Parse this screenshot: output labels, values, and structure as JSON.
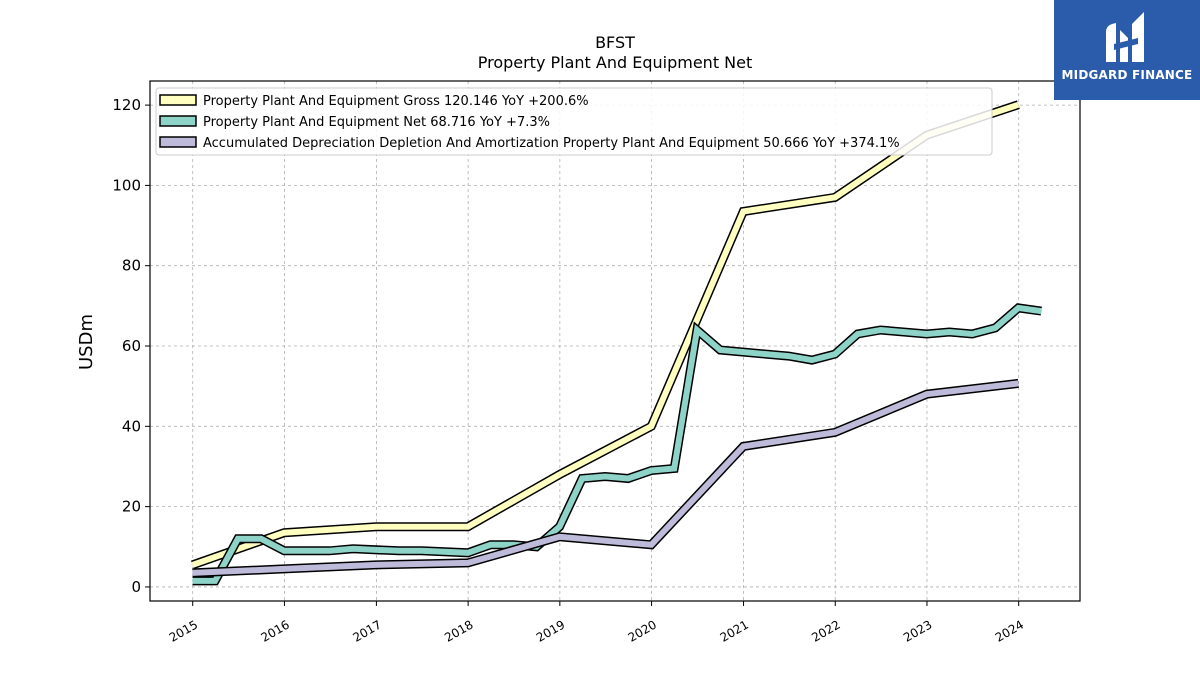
{
  "logo": {
    "text": "MIDGARD FINANCE",
    "bg_color": "#2b5cab"
  },
  "chart_data": {
    "type": "line",
    "title": "BFST",
    "subtitle": "Property Plant And Equipment Net",
    "ylabel": "USDm",
    "xlabel": "",
    "ylim": [
      -3.5,
      126
    ],
    "xlim": [
      "2014-07-15",
      "2024-09-01"
    ],
    "yticks": [
      0,
      20,
      40,
      60,
      80,
      100,
      120
    ],
    "xticks": [
      "2015",
      "2016",
      "2017",
      "2018",
      "2019",
      "2020",
      "2021",
      "2022",
      "2023",
      "2024"
    ],
    "grid": true,
    "legend_position": "top-left",
    "series": [
      {
        "name": "Property Plant And Equipment Gross  120.146 YoY +200.6%",
        "color": "#ffffbf",
        "points": [
          [
            "2014-12-31",
            5.5
          ],
          [
            "2015-12-31",
            13.5
          ],
          [
            "2016-12-31",
            15.0
          ],
          [
            "2017-12-31",
            15.0
          ],
          [
            "2018-12-31",
            28.0
          ],
          [
            "2019-12-31",
            40.0
          ],
          [
            "2020-12-31",
            93.5
          ],
          [
            "2021-12-31",
            97.0
          ],
          [
            "2022-12-31",
            112.5
          ],
          [
            "2023-12-31",
            120.1
          ]
        ]
      },
      {
        "name": "Property Plant And Equipment Net  68.716 YoY +7.3%",
        "color": "#8dd3c7",
        "points": [
          [
            "2014-12-31",
            1.5
          ],
          [
            "2015-03-31",
            1.5
          ],
          [
            "2015-06-30",
            12.0
          ],
          [
            "2015-09-30",
            12.0
          ],
          [
            "2015-12-31",
            9.0
          ],
          [
            "2016-06-30",
            9.0
          ],
          [
            "2016-09-30",
            9.5
          ],
          [
            "2017-03-31",
            9.0
          ],
          [
            "2017-06-30",
            9.0
          ],
          [
            "2017-12-31",
            8.5
          ],
          [
            "2018-03-31",
            10.5
          ],
          [
            "2018-06-30",
            10.5
          ],
          [
            "2018-09-30",
            10.0
          ],
          [
            "2018-12-31",
            15.0
          ],
          [
            "2019-03-31",
            27.0
          ],
          [
            "2019-06-30",
            27.5
          ],
          [
            "2019-09-30",
            27.0
          ],
          [
            "2019-12-31",
            29.0
          ],
          [
            "2020-03-31",
            29.5
          ],
          [
            "2020-06-30",
            64.0
          ],
          [
            "2020-09-30",
            59.0
          ],
          [
            "2021-03-31",
            58.0
          ],
          [
            "2021-06-30",
            57.5
          ],
          [
            "2021-09-30",
            56.5
          ],
          [
            "2021-12-31",
            58.0
          ],
          [
            "2022-03-31",
            63.0
          ],
          [
            "2022-06-30",
            64.0
          ],
          [
            "2022-12-31",
            63.0
          ],
          [
            "2023-03-31",
            63.5
          ],
          [
            "2023-06-30",
            63.0
          ],
          [
            "2023-09-30",
            64.5
          ],
          [
            "2023-12-31",
            69.5
          ],
          [
            "2024-03-31",
            68.7
          ]
        ]
      },
      {
        "name": "Accumulated Depreciation Depletion And Amortization Property Plant And Equipment  50.666 YoY +374.1%",
        "color": "#bebada",
        "points": [
          [
            "2014-12-31",
            3.5
          ],
          [
            "2015-12-31",
            4.5
          ],
          [
            "2016-12-31",
            5.5
          ],
          [
            "2017-12-31",
            6.0
          ],
          [
            "2018-12-31",
            12.5
          ],
          [
            "2019-12-31",
            10.5
          ],
          [
            "2020-12-31",
            35.0
          ],
          [
            "2021-12-31",
            38.5
          ],
          [
            "2022-12-31",
            48.0
          ],
          [
            "2023-12-31",
            50.7
          ]
        ]
      }
    ]
  }
}
